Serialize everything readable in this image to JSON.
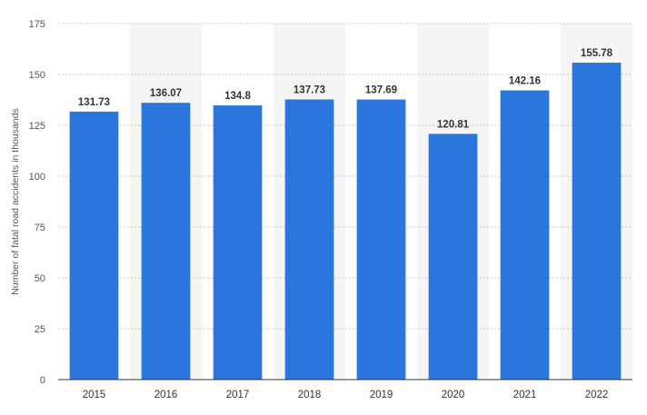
{
  "chart_data": {
    "type": "bar",
    "categories": [
      "2015",
      "2016",
      "2017",
      "2018",
      "2019",
      "2020",
      "2021",
      "2022"
    ],
    "values": [
      131.73,
      136.07,
      134.8,
      137.73,
      137.69,
      120.81,
      142.16,
      155.78
    ],
    "data_labels": [
      "131.73",
      "136.07",
      "134.8",
      "137.73",
      "137.69",
      "120.81",
      "142.16",
      "155.78"
    ],
    "title": "",
    "xlabel": "",
    "ylabel": "Number of fatal road accidents in thousands",
    "ylim": [
      0,
      175
    ],
    "yticks": [
      0,
      25,
      50,
      75,
      100,
      125,
      150,
      175
    ],
    "grid": true,
    "bar_color": "#2a76dc",
    "band_color": "#f5f5f5"
  }
}
